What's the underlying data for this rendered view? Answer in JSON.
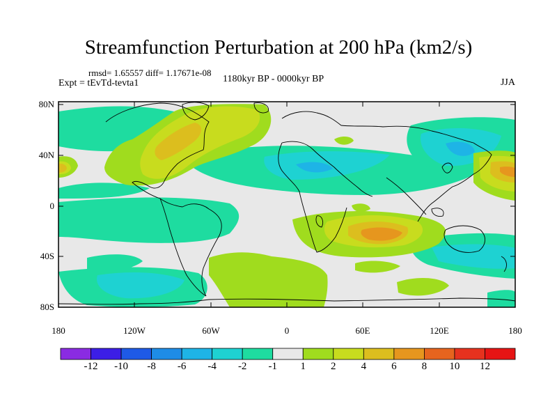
{
  "title": "Streamfunction Perturbation at 200 hPa (km2/s)",
  "stats": "rmsd= 1.65557 diff= 1.17671e-08",
  "experiment": "Expt = tEvTd-tevta1",
  "period": "1180kyr BP - 0000kyr BP",
  "season": "JJA",
  "lat_ticks": [
    "80N",
    "40N",
    "0",
    "40S",
    "80S"
  ],
  "lon_ticks": [
    "180",
    "120W",
    "60W",
    "0",
    "60E",
    "120E",
    "180"
  ],
  "colorbar": {
    "labels": [
      "-12",
      "-10",
      "-8",
      "-6",
      "-4",
      "-2",
      "-1",
      "1",
      "2",
      "4",
      "6",
      "8",
      "10",
      "12"
    ],
    "colors": [
      "#8a2be2",
      "#3c1ee6",
      "#1e5ae6",
      "#1e8ce6",
      "#1eb4e6",
      "#1ed2d2",
      "#1edca0",
      "#e8e8e8",
      "#a0dc1e",
      "#c8dc1e",
      "#dcbe1e",
      "#e6961e",
      "#e6641e",
      "#e6321e",
      "#e61414"
    ]
  },
  "colors": {
    "background_field": "#e8e8e8",
    "neg1": "#1edca0",
    "neg2": "#1ed2d2",
    "neg3": "#1eb4e6",
    "pos1": "#a0dc1e",
    "pos2": "#c8dc1e",
    "pos3": "#dcbe1e",
    "pos4": "#e6961e",
    "pos5": "#e6641e"
  }
}
